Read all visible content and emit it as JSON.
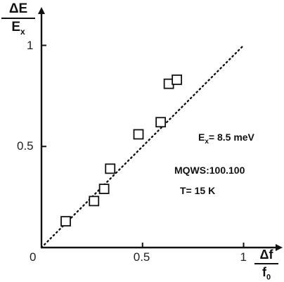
{
  "chart_data": {
    "type": "scatter",
    "x": [
      0.12,
      0.26,
      0.31,
      0.34,
      0.48,
      0.59,
      0.63,
      0.67
    ],
    "y": [
      0.13,
      0.23,
      0.29,
      0.39,
      0.56,
      0.62,
      0.81,
      0.83
    ],
    "xlim": [
      0,
      1.12
    ],
    "ylim": [
      0,
      1.12
    ],
    "x_ticks": [
      "0.5",
      "1"
    ],
    "y_ticks": [
      "0.5",
      "1"
    ],
    "origin_label": "0",
    "xlabel": {
      "numerator": "Δf",
      "denominator": "f",
      "denominator_sub": "0"
    },
    "ylabel": {
      "numerator": "ΔE",
      "denominator": "E",
      "denominator_sub": "x"
    },
    "reference_line": {
      "style": "dotted",
      "from": [
        0,
        0
      ],
      "to": [
        1,
        1
      ]
    },
    "marker": "open-square",
    "grid": false,
    "annotations": {
      "ex_prefix": "E",
      "ex_sub": "x",
      "ex_value": "= 8.5 meV",
      "mqws": "MQWS:100.100",
      "temp": "T= 15 K"
    }
  }
}
